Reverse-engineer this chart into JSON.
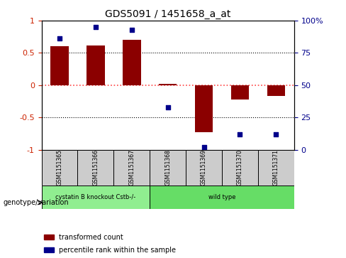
{
  "title": "GDS5091 / 1451658_a_at",
  "samples": [
    "GSM1151365",
    "GSM1151366",
    "GSM1151367",
    "GSM1151368",
    "GSM1151369",
    "GSM1151370",
    "GSM1151371"
  ],
  "bar_values": [
    0.6,
    0.62,
    0.7,
    0.02,
    -0.73,
    -0.22,
    -0.17
  ],
  "percentile_values": [
    86,
    95,
    93,
    33,
    2,
    12,
    12
  ],
  "groups": [
    {
      "label": "cystatin B knockout Cstb-/-",
      "start": 0,
      "end": 3,
      "color": "#90ee90"
    },
    {
      "label": "wild type",
      "start": 3,
      "end": 7,
      "color": "#66dd66"
    }
  ],
  "bar_color": "#8b0000",
  "dot_color": "#00008b",
  "ylim_left": [
    -1,
    1
  ],
  "ylim_right": [
    0,
    100
  ],
  "yticks_left": [
    -1,
    -0.5,
    0,
    0.5,
    1
  ],
  "ytick_labels_left": [
    "-1",
    "-0.5",
    "0",
    "0.5",
    "1"
  ],
  "yticks_right": [
    0,
    25,
    50,
    75,
    100
  ],
  "ytick_labels_right": [
    "0",
    "25",
    "50",
    "75",
    "100%"
  ],
  "hline_y": 0,
  "hline_color": "#ff4444",
  "dotted_lines": [
    -0.5,
    0.5
  ],
  "legend_items": [
    {
      "color": "#8b0000",
      "label": "transformed count"
    },
    {
      "color": "#00008b",
      "label": "percentile rank within the sample"
    }
  ],
  "genotype_label": "genotype/variation",
  "bar_width": 0.5,
  "background_color": "#ffffff",
  "grid_color": "#888888"
}
